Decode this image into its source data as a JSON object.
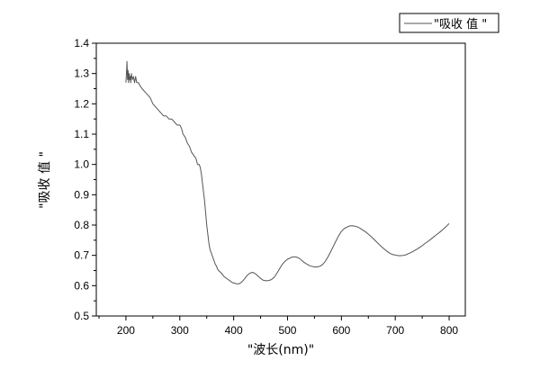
{
  "chart_data": {
    "type": "line",
    "title": "",
    "xlabel": "\"波长(nm)\"",
    "ylabel": "\"吸收 值 \"",
    "xlim": [
      145,
      830
    ],
    "ylim": [
      0.5,
      1.4
    ],
    "xticks": [
      200,
      300,
      400,
      500,
      600,
      700,
      800
    ],
    "yticks": [
      0.5,
      0.6,
      0.7,
      0.8,
      0.9,
      1.0,
      1.1,
      1.2,
      1.3,
      1.4
    ],
    "ytick_labels": [
      "0.5",
      "0.6",
      "0.7",
      "0.8",
      "0.9",
      "1.0",
      "1.1",
      "1.2",
      "1.3",
      "1.4"
    ],
    "grid": false,
    "legend_position": "top-right",
    "series": [
      {
        "name": "\"吸收 值 \"",
        "color": "#555555",
        "x": [
          200,
          201,
          202,
          203,
          204,
          205,
          206,
          207,
          208,
          209,
          210,
          212,
          214,
          216,
          218,
          220,
          223,
          226,
          230,
          235,
          240,
          245,
          250,
          255,
          260,
          265,
          270,
          275,
          280,
          285,
          290,
          295,
          300,
          303,
          306,
          310,
          314,
          318,
          322,
          326,
          330,
          333,
          336,
          338,
          340,
          342,
          344,
          346,
          348,
          350,
          352,
          354,
          356,
          358,
          360,
          362,
          364,
          366,
          368,
          370,
          372,
          375,
          378,
          382,
          386,
          390,
          394,
          398,
          402,
          406,
          410,
          415,
          420,
          425,
          430,
          435,
          440,
          445,
          450,
          455,
          460,
          465,
          470,
          475,
          480,
          485,
          490,
          495,
          500,
          505,
          510,
          515,
          520,
          525,
          530,
          535,
          540,
          545,
          550,
          555,
          560,
          565,
          570,
          575,
          580,
          585,
          590,
          595,
          600,
          605,
          610,
          615,
          620,
          625,
          630,
          635,
          640,
          645,
          650,
          655,
          660,
          665,
          670,
          675,
          680,
          685,
          690,
          695,
          700,
          705,
          710,
          715,
          720,
          725,
          730,
          735,
          740,
          745,
          750,
          755,
          760,
          765,
          770,
          775,
          780,
          785,
          790,
          795,
          800
        ],
        "y": [
          1.27,
          1.3,
          1.34,
          1.28,
          1.31,
          1.27,
          1.3,
          1.28,
          1.29,
          1.27,
          1.3,
          1.28,
          1.29,
          1.27,
          1.29,
          1.27,
          1.27,
          1.26,
          1.25,
          1.24,
          1.23,
          1.22,
          1.2,
          1.19,
          1.18,
          1.17,
          1.16,
          1.16,
          1.15,
          1.15,
          1.14,
          1.13,
          1.13,
          1.12,
          1.1,
          1.09,
          1.07,
          1.06,
          1.04,
          1.03,
          1.02,
          1.0,
          1.0,
          0.99,
          0.97,
          0.94,
          0.91,
          0.88,
          0.84,
          0.8,
          0.77,
          0.74,
          0.72,
          0.71,
          0.7,
          0.69,
          0.68,
          0.67,
          0.665,
          0.655,
          0.65,
          0.645,
          0.64,
          0.63,
          0.625,
          0.62,
          0.615,
          0.61,
          0.608,
          0.606,
          0.606,
          0.612,
          0.622,
          0.634,
          0.641,
          0.644,
          0.64,
          0.632,
          0.624,
          0.618,
          0.616,
          0.617,
          0.62,
          0.627,
          0.64,
          0.655,
          0.67,
          0.68,
          0.687,
          0.692,
          0.695,
          0.695,
          0.692,
          0.686,
          0.678,
          0.672,
          0.667,
          0.664,
          0.662,
          0.662,
          0.664,
          0.67,
          0.68,
          0.695,
          0.712,
          0.73,
          0.748,
          0.765,
          0.779,
          0.788,
          0.793,
          0.797,
          0.798,
          0.796,
          0.794,
          0.789,
          0.783,
          0.777,
          0.77,
          0.762,
          0.754,
          0.745,
          0.736,
          0.728,
          0.72,
          0.713,
          0.707,
          0.703,
          0.701,
          0.699,
          0.699,
          0.7,
          0.702,
          0.706,
          0.71,
          0.715,
          0.72,
          0.726,
          0.732,
          0.739,
          0.745,
          0.752,
          0.759,
          0.766,
          0.773,
          0.78,
          0.788,
          0.796,
          0.805
        ]
      }
    ]
  }
}
